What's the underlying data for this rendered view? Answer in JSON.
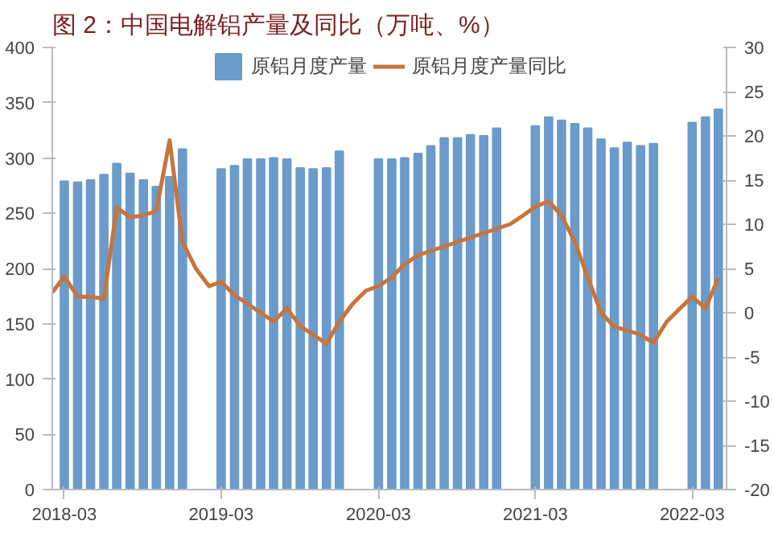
{
  "chart_data": {
    "type": "bar",
    "title": "图 2：中国电解铝产量及同比（万吨、%）",
    "x": [
      "2018-03",
      "2018-04",
      "2018-05",
      "2018-06",
      "2018-07",
      "2018-08",
      "2018-09",
      "2018-10",
      "2018-11",
      "2018-12",
      "2019-03",
      "2019-04",
      "2019-05",
      "2019-06",
      "2019-07",
      "2019-08",
      "2019-09",
      "2019-10",
      "2019-11",
      "2019-12",
      "2020-03",
      "2020-04",
      "2020-05",
      "2020-06",
      "2020-07",
      "2020-08",
      "2020-09",
      "2020-10",
      "2020-11",
      "2020-12",
      "2021-03",
      "2021-04",
      "2021-05",
      "2021-06",
      "2021-07",
      "2021-08",
      "2021-09",
      "2021-10",
      "2021-11",
      "2021-12",
      "2022-03",
      "2022-04",
      "2022-05"
    ],
    "series": [
      {
        "name": "原铝月度产量",
        "color": "#6a9bcb",
        "values": [
          279,
          278,
          280,
          285,
          295,
          286,
          280,
          274,
          283,
          308,
          290,
          293,
          299,
          299,
          300,
          299,
          291,
          290,
          291,
          306,
          299,
          299,
          300,
          304,
          311,
          318,
          318,
          321,
          320,
          327,
          329,
          337,
          334,
          331,
          327,
          317,
          309,
          314,
          311,
          313,
          332,
          337,
          344
        ]
      },
      {
        "name": "原铝月度产量同比",
        "type": "line",
        "axis": "y2",
        "color": "#c8743a",
        "x": [
          "2018-02",
          "2018-03",
          "2018-04",
          "2018-05",
          "2018-06",
          "2018-07",
          "2018-08",
          "2018-09",
          "2018-10",
          "2018-11",
          "2018-12",
          "2019-01",
          "2019-02",
          "2019-03",
          "2019-04",
          "2019-05",
          "2019-06",
          "2019-07",
          "2019-08",
          "2019-09",
          "2019-10",
          "2019-11",
          "2019-12",
          "2020-01",
          "2020-02",
          "2020-03",
          "2020-04",
          "2020-05",
          "2020-06",
          "2020-07",
          "2020-08",
          "2020-09",
          "2020-10",
          "2020-11",
          "2020-12",
          "2021-01",
          "2021-02",
          "2021-03",
          "2021-04",
          "2021-05",
          "2021-06",
          "2021-07",
          "2021-08",
          "2021-09",
          "2021-10",
          "2021-11",
          "2021-12",
          "2022-01",
          "2022-02",
          "2022-03",
          "2022-04",
          "2022-05"
        ],
        "values": [
          2.3,
          4.1,
          1.8,
          1.8,
          1.6,
          11.9,
          10.8,
          11,
          11.5,
          19.5,
          8,
          5,
          3,
          3.5,
          2,
          1,
          0,
          -1,
          0.5,
          -1.5,
          -2.5,
          -3.5,
          -1,
          1,
          2.5,
          3,
          4,
          5.5,
          6.5,
          7,
          7.5,
          8,
          8.5,
          9,
          9.5,
          10,
          11,
          12,
          12.6,
          11,
          8,
          4,
          0,
          -1.6,
          -2,
          -2.5,
          -3.4,
          -1,
          0.5,
          1.8,
          0.5,
          3.9
        ]
      }
    ],
    "xlim": [
      "2018-02",
      "2022-05-20"
    ],
    "xticks": [
      {
        "value": "2018-03",
        "label": "2018-03"
      },
      {
        "value": "2019-03",
        "label": "2019-03"
      },
      {
        "value": "2020-03",
        "label": "2020-03"
      },
      {
        "value": "2021-03",
        "label": "2021-03"
      },
      {
        "value": "2022-03",
        "label": "2022-03"
      }
    ],
    "ylim": [
      0,
      400
    ],
    "yticks": [
      0,
      50,
      100,
      150,
      200,
      250,
      300,
      350,
      400
    ],
    "y2lim": [
      -20,
      30
    ],
    "y2ticks": [
      -20,
      -15,
      -10,
      -5,
      0,
      5,
      10,
      15,
      20,
      25,
      30
    ],
    "grid": false,
    "legend": "top"
  }
}
